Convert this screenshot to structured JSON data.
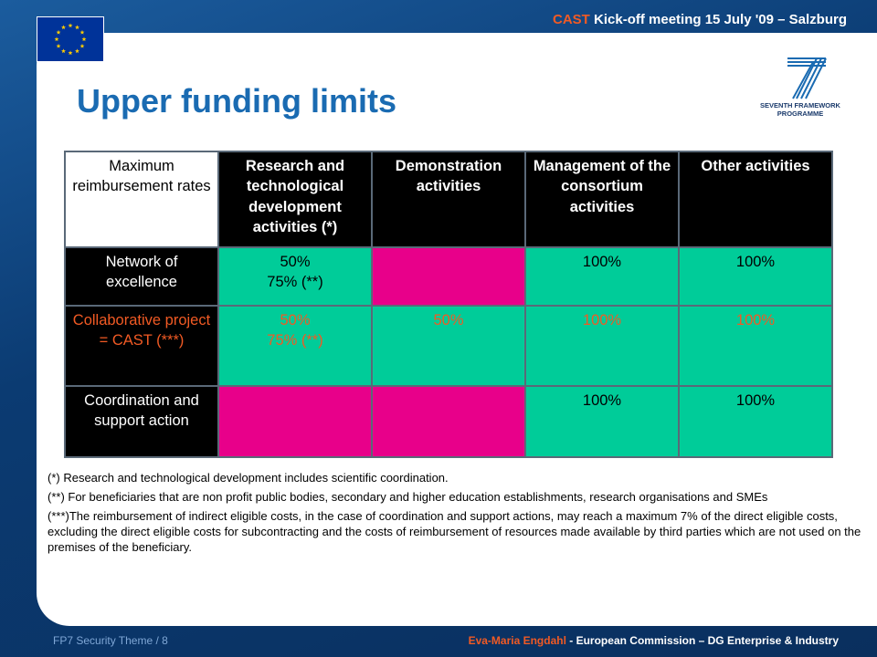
{
  "header": {
    "accent": "CAST",
    "rest": " Kick-off meeting 15 July '09 – Salzburg"
  },
  "logos": {
    "eu_flag": "eu-flag-icon",
    "fp7_text_line1": "SEVENTH FRAMEWORK",
    "fp7_text_line2": "PROGRAMME",
    "fp7_numeral": "7"
  },
  "title": "Upper funding limits",
  "table": {
    "headers": [
      "Maximum reimbursement rates",
      "Research and technological development activities (*)",
      "Demonstration activities",
      "Management of the consortium activities",
      "Other activities"
    ],
    "rows": [
      {
        "label": "Network of excellence",
        "rtd_line1": "50%",
        "rtd_line2": "75% (**)",
        "demo": "",
        "management": "100%",
        "other": "100%"
      },
      {
        "label": "Collaborative project = CAST (***)",
        "rtd_line1": "50%",
        "rtd_line2": "75% (**)",
        "demo": "50%",
        "management": "100%",
        "other": "100%"
      },
      {
        "label": "Coordination and support action",
        "rtd_line1": "",
        "rtd_line2": "",
        "demo": "",
        "management": "100%",
        "other": "100%"
      }
    ]
  },
  "footnotes": [
    "(*) Research and technological development includes scientific coordination.",
    "(**) For beneficiaries that are non profit public bodies, secondary and higher education establishments, research organisations and SMEs",
    "(***)The reimbursement of indirect eligible costs, in the case of coordination and support actions, may reach a maximum 7% of the direct eligible costs, excluding the direct eligible costs for subcontracting and the costs of reimbursement of resources made available by third parties which are not used on the premises of the beneficiary."
  ],
  "footer": {
    "left": "FP7 Security Theme  / 8",
    "right_accent": "Eva-Maria Engdahl",
    "right_rest": " - European Commission – DG Enterprise & Industry"
  },
  "colors": {
    "title_blue": "#1a6bb2",
    "accent_orange": "#f15a24",
    "cell_green": "#00cc99",
    "cell_magenta": "#e8008a",
    "background_navy": "#0d3d74"
  }
}
